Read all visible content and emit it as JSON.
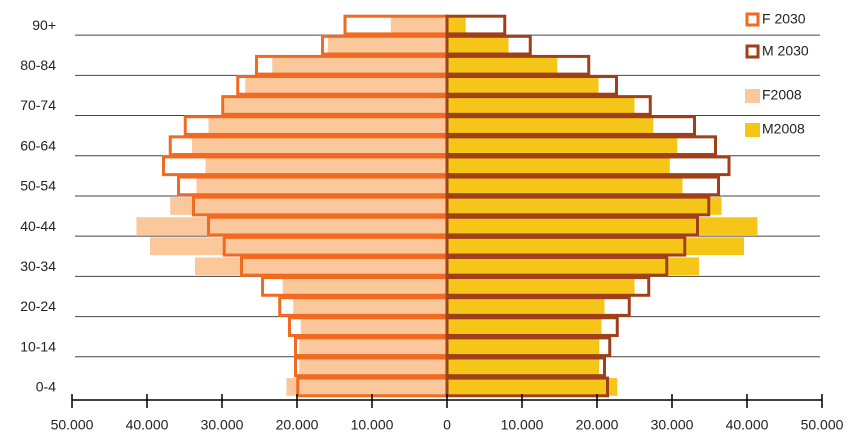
{
  "chart_data": {
    "type": "pyramid",
    "categories": [
      "0-4",
      null,
      "10-14",
      null,
      "20-24",
      null,
      "30-34",
      null,
      "40-44",
      null,
      "50-54",
      null,
      "60-64",
      null,
      "70-74",
      null,
      "80-84",
      null,
      "90+"
    ],
    "series": [
      {
        "name": "F 2030",
        "color": "#f26a21",
        "outline": true,
        "values": [
          -19900,
          -20200,
          -20200,
          -21000,
          -22300,
          -24600,
          -27400,
          -29700,
          -31800,
          -33800,
          -35800,
          -37800,
          -36900,
          -34900,
          -29900,
          -27900,
          -25400,
          -16600,
          -13600
        ]
      },
      {
        "name": "M 2030",
        "color": "#a0401a",
        "outline": true,
        "values": [
          21400,
          21000,
          21700,
          22700,
          24300,
          26900,
          29300,
          31700,
          33400,
          34900,
          36200,
          37600,
          35800,
          33000,
          27100,
          22600,
          18900,
          11100,
          7700
        ]
      },
      {
        "name": "F2008",
        "color": "#fac89a",
        "outline": false,
        "values": [
          -21400,
          -19700,
          -19700,
          -19500,
          -20500,
          -21900,
          -33600,
          -39600,
          -41400,
          -36900,
          -33400,
          -32200,
          -34000,
          -31800,
          -29700,
          -26900,
          -23300,
          -15900,
          -7500
        ]
      },
      {
        "name": "M2008",
        "color": "#f5c518",
        "outline": false,
        "values": [
          22700,
          20300,
          20300,
          20600,
          21000,
          25000,
          33600,
          39600,
          41400,
          36600,
          31400,
          29700,
          30700,
          27500,
          25000,
          20200,
          14700,
          8200,
          2500
        ]
      }
    ],
    "xlim": [
      -50000,
      50000
    ],
    "xticks": [
      {
        "value": -50000,
        "label": "50.000"
      },
      {
        "value": -40000,
        "label": "40.000"
      },
      {
        "value": -30000,
        "label": "30.000"
      },
      {
        "value": -20000,
        "label": "20.000"
      },
      {
        "value": -10000,
        "label": "10.000"
      },
      0,
      {
        "value": 10000,
        "label": "10.000"
      },
      {
        "value": 20000,
        "label": "20.000"
      },
      {
        "value": 30000,
        "label": "30.000"
      },
      {
        "value": 40000,
        "label": "40.000"
      },
      {
        "value": 50000,
        "label": "50.000"
      }
    ],
    "legend": "top-right"
  }
}
